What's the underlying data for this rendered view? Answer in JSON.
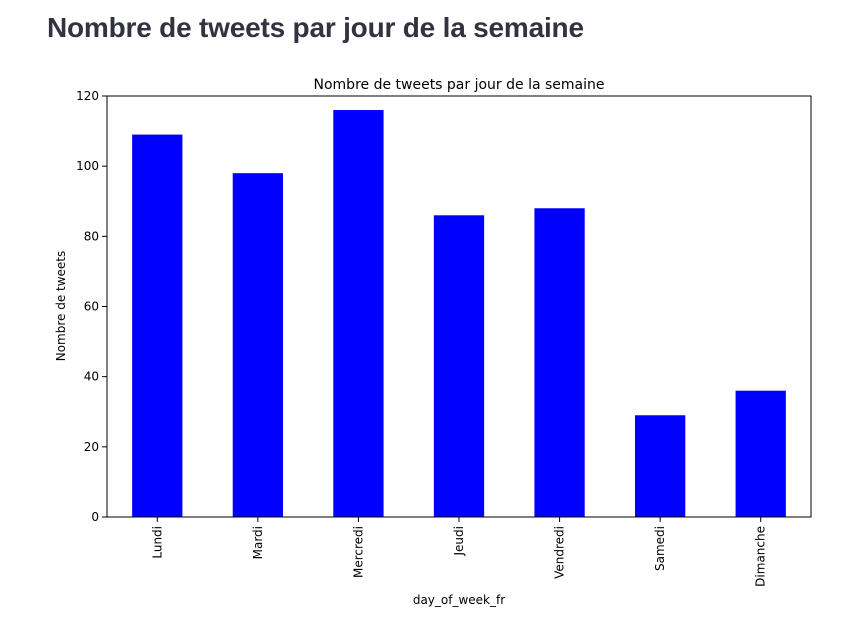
{
  "page": {
    "heading": "Nombre de tweets par jour de la semaine"
  },
  "colors": {
    "bar": "#0000ff",
    "heading": "#31333f"
  },
  "chart_data": {
    "type": "bar",
    "title": "Nombre de tweets par jour de la semaine",
    "xlabel": "day_of_week_fr",
    "ylabel": "Nombre de tweets",
    "categories": [
      "Lundi",
      "Mardi",
      "Mercredi",
      "Jeudi",
      "Vendredi",
      "Samedi",
      "Dimanche"
    ],
    "values": [
      109,
      98,
      116,
      86,
      88,
      29,
      36
    ],
    "ylim": [
      0,
      120
    ],
    "yticks": [
      0,
      20,
      40,
      60,
      80,
      100,
      120
    ],
    "grid": false,
    "legend": false
  }
}
